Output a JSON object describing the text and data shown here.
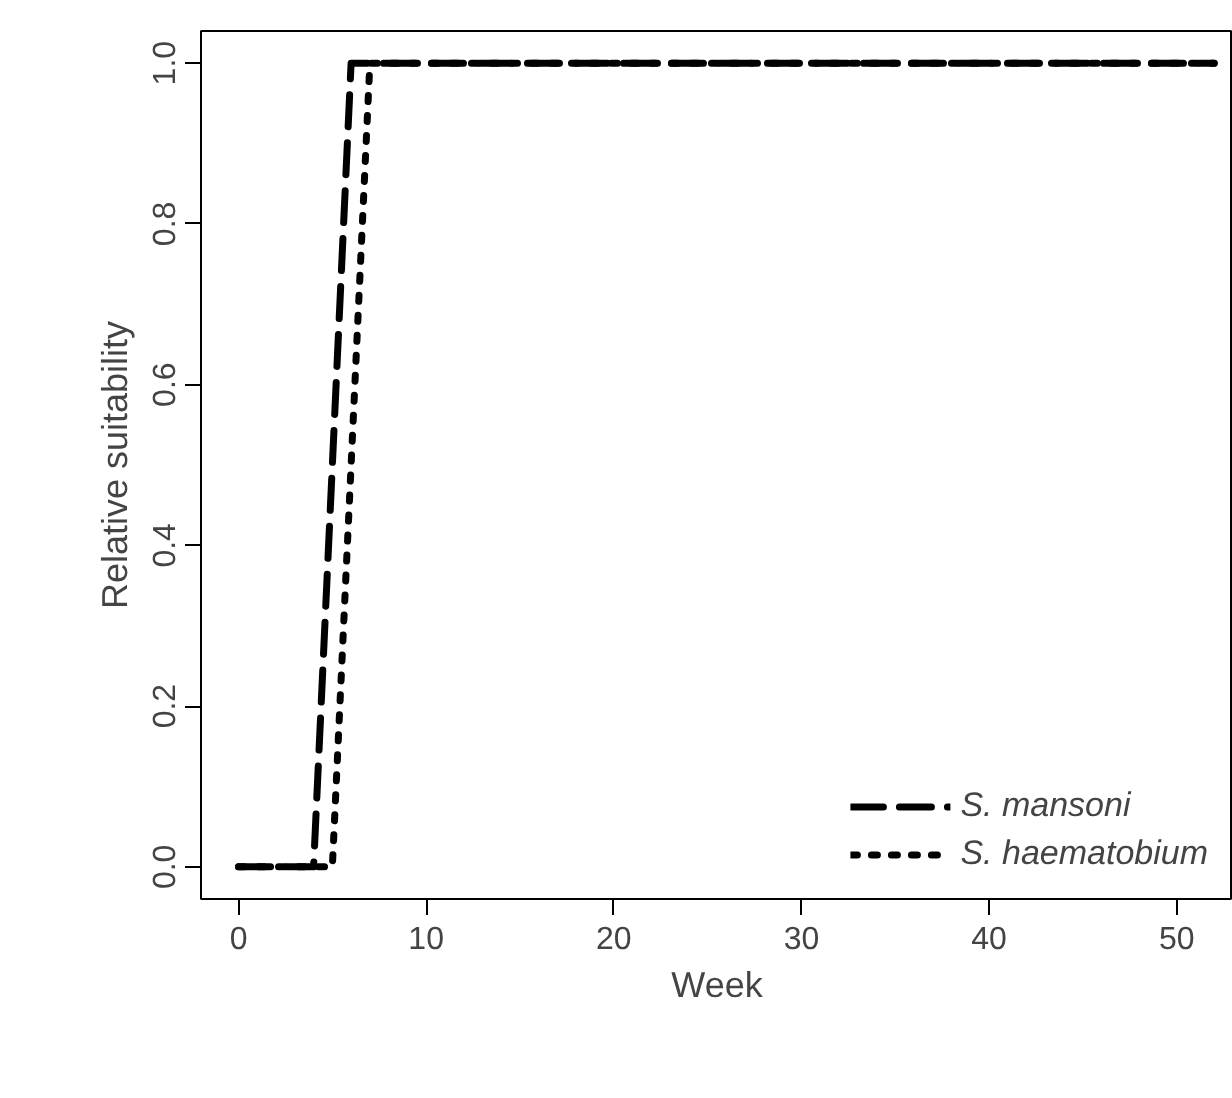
{
  "chart_data": {
    "type": "line",
    "xlabel": "Week",
    "ylabel": "Relative suitability",
    "xlim": [
      -2,
      53
    ],
    "ylim": [
      -0.04,
      1.04
    ],
    "xticks": [
      0,
      10,
      20,
      30,
      40,
      50
    ],
    "yticks": [
      {
        "value": 0,
        "label": "0.0"
      },
      {
        "value": 0.2,
        "label": "0.2"
      },
      {
        "value": 0.4,
        "label": "0.4"
      },
      {
        "value": 0.6,
        "label": "0.6"
      },
      {
        "value": 0.8,
        "label": "0.8"
      },
      {
        "value": 1,
        "label": "1.0"
      }
    ],
    "grid": false,
    "legend": "bottom right",
    "marker": "none",
    "series": [
      {
        "name": "S. mansoni",
        "color": "#000000",
        "line_style": "dashed",
        "x": [
          0,
          4,
          6,
          52
        ],
        "values": [
          0,
          0,
          1,
          1
        ]
      },
      {
        "name": "S. haematobium",
        "color": "#000000",
        "line_style": "dotted",
        "x": [
          0,
          5,
          7,
          52
        ],
        "values": [
          0,
          0,
          1,
          1
        ]
      }
    ]
  }
}
